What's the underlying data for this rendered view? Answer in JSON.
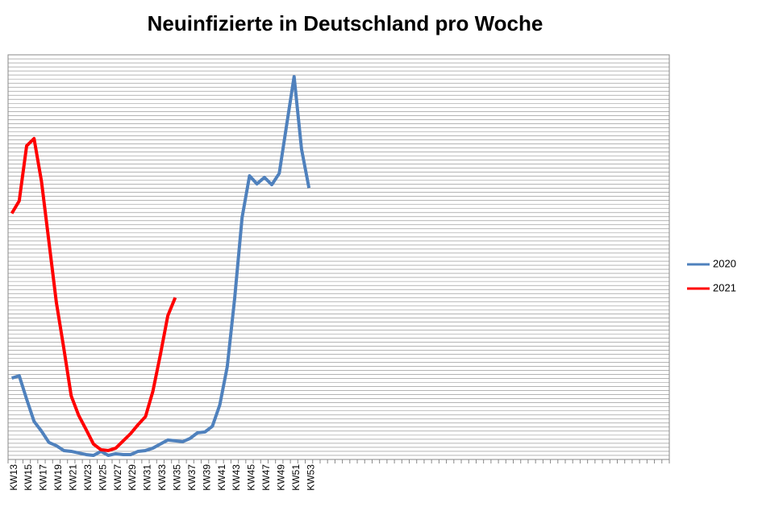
{
  "chart_data": {
    "type": "line",
    "title": "Neuinfizierte in Deutschland pro Woche",
    "categories": [
      "KW13",
      null,
      "KW15",
      null,
      "KW17",
      null,
      "KW19",
      null,
      "KW21",
      null,
      "KW23",
      null,
      "KW25",
      null,
      "KW27",
      null,
      "KW29",
      null,
      "KW31",
      null,
      "KW33",
      null,
      "KW35",
      null,
      "KW37",
      null,
      "KW39",
      null,
      "KW41",
      null,
      "KW43",
      null,
      "KW45",
      null,
      "KW47",
      null,
      "KW49",
      null,
      "KW51",
      null,
      "KW53",
      null,
      null,
      null,
      null,
      null,
      null,
      null,
      null,
      null,
      null,
      null,
      null,
      null,
      null,
      null,
      null,
      null,
      null,
      null,
      null,
      null,
      null,
      null,
      null,
      null,
      null,
      null,
      null,
      null,
      null,
      null,
      null,
      null,
      null,
      null,
      null,
      null,
      null,
      null,
      null,
      null,
      null,
      null,
      null,
      null,
      null,
      null,
      null
    ],
    "series": [
      {
        "name": "2020",
        "color": "#4f81bd",
        "values": [
          20.1,
          20.7,
          14.9,
          9.4,
          7.0,
          4.2,
          3.4,
          2.2,
          2.0,
          1.6,
          1.2,
          1.0,
          2.0,
          1.0,
          1.4,
          1.2,
          1.2,
          2.0,
          2.2,
          2.8,
          3.8,
          4.8,
          4.6,
          4.4,
          5.2,
          6.6,
          6.8,
          8.2,
          13.5,
          22.9,
          39.8,
          59.8,
          70.1,
          68.1,
          69.7,
          67.9,
          70.7,
          82.7,
          94.6,
          76.7,
          67.1,
          null,
          null,
          null,
          null,
          null,
          null,
          null,
          null,
          null,
          null,
          null,
          null,
          null,
          null,
          null,
          null,
          null,
          null,
          null,
          null,
          null,
          null,
          null,
          null,
          null,
          null,
          null,
          null,
          null,
          null,
          null,
          null,
          null,
          null,
          null,
          null,
          null,
          null,
          null,
          null,
          null,
          null,
          null,
          null,
          null,
          null,
          null,
          null
        ]
      },
      {
        "name": "2021",
        "color": "#ff0000",
        "values": [
          60.8,
          63.9,
          77.5,
          79.3,
          68.7,
          53.8,
          38.8,
          27.5,
          15.7,
          10.9,
          7.4,
          3.8,
          2.4,
          2.2,
          2.8,
          4.6,
          6.4,
          8.6,
          10.6,
          16.9,
          25.9,
          35.5,
          40.0,
          null,
          null,
          null,
          null,
          null,
          null,
          null,
          null,
          null,
          null,
          null,
          null,
          null,
          null,
          null,
          null,
          null,
          null,
          null,
          null,
          null,
          null,
          null,
          null,
          null,
          null,
          null,
          null,
          null,
          null,
          null,
          null,
          null,
          null,
          null,
          null,
          null,
          null,
          null,
          null,
          null,
          null,
          null,
          null,
          null,
          null,
          null,
          null,
          null,
          null,
          null,
          null,
          null,
          null,
          null,
          null,
          null,
          null,
          null,
          null,
          null,
          null,
          null,
          null,
          null,
          null
        ]
      }
    ],
    "ylim": [
      0,
      100
    ],
    "yticks": [
      0,
      1,
      2,
      3,
      4,
      5,
      6,
      7,
      8,
      9,
      10,
      11,
      12,
      13,
      14,
      15,
      16,
      17,
      18,
      19,
      20,
      21,
      22,
      23,
      24,
      25,
      26,
      27,
      28,
      29,
      30,
      31,
      32,
      33,
      34,
      35,
      36,
      37,
      38,
      39,
      40,
      41,
      42,
      43,
      44,
      45,
      46,
      47,
      48,
      49,
      50,
      51,
      52,
      53,
      54,
      55,
      56,
      57,
      58,
      59,
      60,
      61,
      62,
      63,
      64,
      65,
      66,
      67,
      68,
      69,
      70,
      71,
      72,
      73,
      74,
      75,
      76,
      77,
      78,
      79,
      80,
      81,
      82,
      83,
      84,
      85,
      86,
      87,
      88,
      89,
      90,
      91,
      92,
      93,
      94,
      95,
      96,
      97,
      98,
      99,
      100
    ],
    "grid": true,
    "legend": "right"
  }
}
